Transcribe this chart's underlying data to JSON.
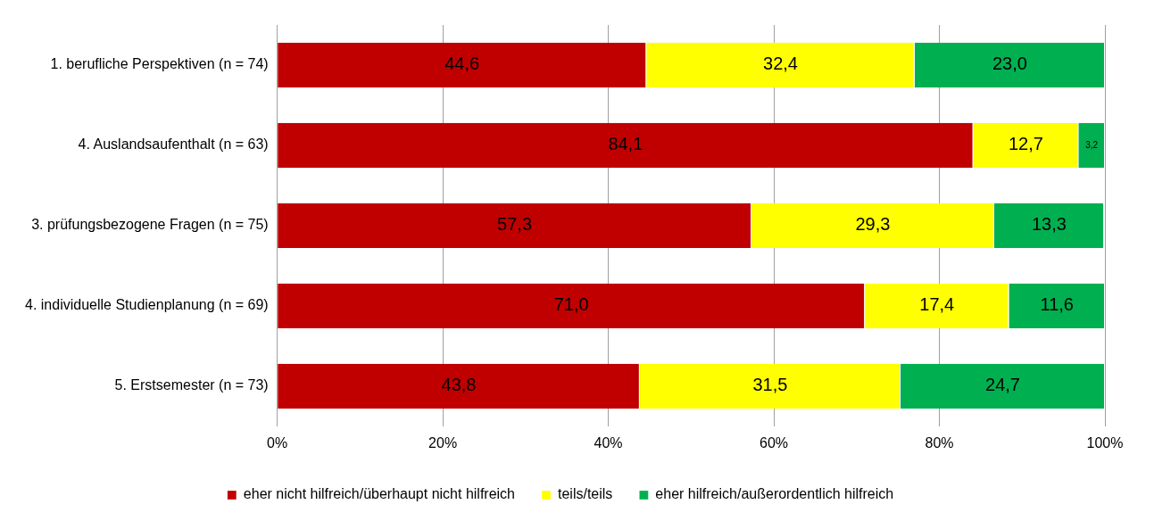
{
  "chart_data": {
    "type": "bar",
    "orientation": "horizontal",
    "stacked": true,
    "categories": [
      "1. berufliche Perspektiven (n = 74)",
      "4. Auslandsaufenthalt (n = 63)",
      "3. prüfungsbezogene Fragen (n = 75)",
      "4. individuelle Studienplanung (n = 69)",
      "5. Erstsemester (n = 73)"
    ],
    "series": [
      {
        "name": "eher nicht hilfreich/überhaupt nicht hilfreich",
        "color": "#c00000",
        "values": [
          44.6,
          84.1,
          57.3,
          71.0,
          43.8
        ],
        "value_labels": [
          "44,6",
          "84,1",
          "57,3",
          "71,0",
          "43,8"
        ]
      },
      {
        "name": "teils/teils",
        "color": "#ffff00",
        "values": [
          32.4,
          12.7,
          29.3,
          17.4,
          31.5
        ],
        "value_labels": [
          "32,4",
          "12,7",
          "29,3",
          "17,4",
          "31,5"
        ]
      },
      {
        "name": "eher hilfreich/außerordentlich hilfreich",
        "color": "#00b050",
        "values": [
          23.0,
          3.2,
          13.3,
          11.6,
          24.7
        ],
        "value_labels": [
          "23,0",
          "3,2",
          "13,3",
          "11,6",
          "24,7"
        ]
      }
    ],
    "xlim": [
      0,
      100
    ],
    "xticks": [
      {
        "value": 0,
        "label": "0%"
      },
      {
        "value": 20,
        "label": "20%"
      },
      {
        "value": 40,
        "label": "40%"
      },
      {
        "value": 60,
        "label": "60%"
      },
      {
        "value": 80,
        "label": "80%"
      },
      {
        "value": 100,
        "label": "100%"
      }
    ],
    "grid": "x",
    "legend": "bottom"
  }
}
